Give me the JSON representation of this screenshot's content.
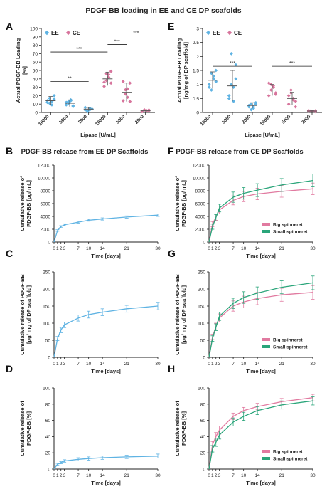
{
  "figure_title": "PDGF-BB loading in EE and CE DP scafolds",
  "colors": {
    "ee": "#5fb3e3",
    "ce": "#d7749c",
    "big": "#e17aa0",
    "small": "#2aa57a",
    "axis": "#222222"
  },
  "panel_letters": {
    "A": "A",
    "B": "B",
    "C": "C",
    "D": "D",
    "E": "E",
    "F": "F",
    "G": "G",
    "H": "H"
  },
  "chart_data": [
    {
      "id": "A",
      "type": "scatter",
      "title": "",
      "xlabel": "Lipase [U/mL]",
      "ylabel": "Actual PDGF-BB Loading [%]",
      "ylim": [
        0,
        100
      ],
      "yticks": [
        0,
        10,
        20,
        30,
        40,
        50,
        60,
        70,
        80,
        90,
        100
      ],
      "categories": [
        "10000",
        "5000",
        "2000",
        "10000",
        "5000",
        "2000"
      ],
      "legend": [
        {
          "name": "EE",
          "marker": "diamond"
        },
        {
          "name": "CE",
          "marker": "diamond"
        }
      ],
      "series": [
        {
          "name": "EE",
          "categories_index": [
            0,
            1,
            2
          ],
          "means": [
            14,
            11,
            4
          ],
          "sd": [
            5,
            4,
            2
          ],
          "points": [
            [
              12,
              17,
              9,
              20,
              14,
              11,
              13,
              16
            ],
            [
              9,
              13,
              15,
              8,
              12,
              11,
              14,
              7
            ],
            [
              3,
              2,
              5,
              4,
              6,
              1,
              3,
              4
            ]
          ]
        },
        {
          "name": "CE",
          "categories_index": [
            3,
            4,
            5
          ],
          "means": [
            40,
            24,
            2
          ],
          "sd": [
            8,
            11,
            1
          ],
          "points": [
            [
              31,
              38,
              42,
              49,
              36,
              46,
              45,
              35
            ],
            [
              14,
              27,
              18,
              35,
              37,
              22,
              28,
              13
            ],
            [
              1,
              3,
              2,
              2,
              1,
              3,
              2,
              3
            ]
          ]
        }
      ],
      "significance": [
        {
          "label": "**",
          "from": 0,
          "to": 2,
          "y": 37
        },
        {
          "label": "***",
          "from": 0,
          "to": 3,
          "y": 72
        },
        {
          "label": "***",
          "from": 3,
          "to": 4,
          "y": 81
        },
        {
          "label": "***",
          "from": 4,
          "to": 5,
          "y": 91
        }
      ]
    },
    {
      "id": "E",
      "type": "scatter",
      "title": "",
      "xlabel": "Lipase [U/mL]",
      "ylabel": "Actual PDGF-BB Loading [ng/mg of DP scaffold]",
      "ylim": [
        0,
        3
      ],
      "yticks": [
        0,
        0.5,
        1,
        1.5,
        2,
        2.5,
        3
      ],
      "ytick_labels": [
        "0",
        "0.5",
        "1",
        "1.5",
        "2",
        "2.5",
        "3"
      ],
      "categories": [
        "10000",
        "5000",
        "2000",
        "10000",
        "5000",
        "2000"
      ],
      "legend": [
        {
          "name": "EE",
          "marker": "diamond"
        },
        {
          "name": "CE",
          "marker": "diamond"
        }
      ],
      "series": [
        {
          "name": "EE",
          "categories_index": [
            0,
            1,
            2
          ],
          "means": [
            1.15,
            0.95,
            0.25
          ],
          "sd": [
            0.3,
            0.55,
            0.1
          ],
          "points": [
            [
              0.9,
              1.4,
              1.2,
              1.5,
              1.0,
              0.8,
              1.3,
              1.1
            ],
            [
              0.6,
              2.1,
              0.9,
              1.7,
              0.5,
              1.0,
              0.4,
              1.2
            ],
            [
              0.2,
              0.3,
              0.15,
              0.35,
              0.25,
              0.1,
              0.2,
              0.3
            ]
          ]
        },
        {
          "name": "CE",
          "categories_index": [
            3,
            4,
            5
          ],
          "means": [
            0.8,
            0.5,
            0.05
          ],
          "sd": [
            0.2,
            0.22,
            0.03
          ],
          "points": [
            [
              0.6,
              1.0,
              0.9,
              0.7,
              1.05,
              0.8,
              0.95,
              0.65
            ],
            [
              0.3,
              0.7,
              0.45,
              0.2,
              0.6,
              0.8,
              0.5,
              0.4
            ],
            [
              0.04,
              0.06,
              0.05,
              0.03,
              0.07,
              0.05,
              0.04,
              0.06
            ]
          ]
        }
      ],
      "significance": [
        {
          "label": "***",
          "from": 0,
          "to": 2,
          "y": 1.65
        },
        {
          "label": "***",
          "from": 3,
          "to": 5,
          "y": 1.65
        }
      ]
    },
    {
      "id": "B",
      "type": "line",
      "title": "PDGF-BB release from EE DP Scaffolds",
      "xlabel": "Time [days]",
      "ylabel": "Cumulative release of PDGF-BB [pg/ mL]",
      "xlim": [
        0,
        30
      ],
      "xticks": [
        0,
        1,
        2,
        3,
        7,
        10,
        14,
        21,
        30
      ],
      "ylim": [
        0,
        12000
      ],
      "yticks": [
        0,
        2000,
        4000,
        6000,
        8000,
        10000,
        12000
      ],
      "series": [
        {
          "name": "EE",
          "x": [
            0,
            1,
            2,
            3,
            7,
            10,
            14,
            21,
            30
          ],
          "y": [
            0,
            1800,
            2400,
            2700,
            3100,
            3400,
            3600,
            3900,
            4200
          ],
          "err": [
            0,
            120,
            150,
            150,
            150,
            150,
            170,
            180,
            200
          ]
        }
      ]
    },
    {
      "id": "F",
      "type": "line",
      "title": "PDGF-BB release from CE DP Scaffolds",
      "xlabel": "Time [days]",
      "ylabel": "Cumulative release of PDGF-BB [pg/ mL]",
      "xlim": [
        0,
        30
      ],
      "xticks": [
        0,
        1,
        2,
        3,
        7,
        10,
        14,
        21,
        30
      ],
      "ylim": [
        0,
        12000
      ],
      "yticks": [
        0,
        2000,
        4000,
        6000,
        8000,
        10000,
        12000
      ],
      "legend": [
        {
          "name": "Big spinneret"
        },
        {
          "name": "Small spinneret"
        }
      ],
      "series": [
        {
          "name": "Big spinneret",
          "x": [
            0,
            1,
            2,
            3,
            7,
            10,
            14,
            21,
            30
          ],
          "y": [
            0,
            2800,
            3900,
            5000,
            6500,
            7100,
            7500,
            7900,
            8300
          ],
          "err": [
            0,
            400,
            500,
            600,
            700,
            800,
            900,
            900,
            900
          ]
        },
        {
          "name": "Small spinneret",
          "x": [
            0,
            1,
            2,
            3,
            7,
            10,
            14,
            21,
            30
          ],
          "y": [
            0,
            2400,
            3800,
            5300,
            7000,
            7600,
            8100,
            8900,
            9600
          ],
          "err": [
            0,
            400,
            500,
            600,
            800,
            900,
            1000,
            1000,
            1000
          ]
        }
      ]
    },
    {
      "id": "C",
      "type": "line",
      "title": "",
      "xlabel": "Time [days]",
      "ylabel": "Cumulative release of PDGF-BB [pg/ mg of DP scaffold]",
      "xlim": [
        0,
        30
      ],
      "xticks": [
        0,
        1,
        2,
        3,
        7,
        10,
        14,
        21,
        30
      ],
      "ylim": [
        0,
        250
      ],
      "yticks": [
        0,
        50,
        100,
        150,
        200,
        250
      ],
      "series": [
        {
          "name": "EE",
          "x": [
            0,
            1,
            2,
            3,
            7,
            10,
            14,
            21,
            30
          ],
          "y": [
            0,
            55,
            80,
            95,
            115,
            125,
            132,
            142,
            150
          ],
          "err": [
            0,
            6,
            8,
            8,
            9,
            10,
            10,
            10,
            11
          ]
        }
      ]
    },
    {
      "id": "G",
      "type": "line",
      "title": "",
      "xlabel": "Time [days]",
      "ylabel": "Cumulative release of PDGF-BB [pg/ mg of DP scaffold]",
      "xlim": [
        0,
        30
      ],
      "xticks": [
        0,
        1,
        2,
        3,
        7,
        10,
        14,
        21,
        30
      ],
      "ylim": [
        0,
        250
      ],
      "yticks": [
        0,
        50,
        100,
        150,
        200,
        250
      ],
      "legend": [
        {
          "name": "Big spinneret"
        },
        {
          "name": "Small spinneret"
        }
      ],
      "series": [
        {
          "name": "Big spinneret",
          "x": [
            0,
            1,
            2,
            3,
            7,
            10,
            14,
            21,
            30
          ],
          "y": [
            0,
            60,
            90,
            115,
            150,
            162,
            172,
            183,
            190
          ],
          "err": [
            0,
            8,
            10,
            12,
            15,
            17,
            18,
            19,
            20
          ]
        },
        {
          "name": "Small spinneret",
          "x": [
            0,
            1,
            2,
            3,
            7,
            10,
            14,
            21,
            30
          ],
          "y": [
            0,
            55,
            88,
            120,
            158,
            175,
            188,
            205,
            218
          ],
          "err": [
            0,
            8,
            10,
            12,
            15,
            17,
            18,
            19,
            20
          ]
        }
      ]
    },
    {
      "id": "D",
      "type": "line",
      "title": "",
      "xlabel": "Time [days]",
      "ylabel": "Cumulative release of PDGF-BB [%]",
      "xlim": [
        0,
        30
      ],
      "xticks": [
        0,
        1,
        2,
        3,
        7,
        10,
        14,
        21,
        30
      ],
      "ylim": [
        0,
        100
      ],
      "yticks": [
        0,
        20,
        40,
        60,
        80,
        100
      ],
      "series": [
        {
          "name": "EE",
          "x": [
            0,
            1,
            2,
            3,
            7,
            10,
            14,
            21,
            30
          ],
          "y": [
            0,
            6,
            8,
            10,
            12,
            13,
            14,
            15,
            16
          ],
          "err": [
            0,
            1,
            1.5,
            1.5,
            2,
            2,
            2,
            2,
            2.5
          ]
        }
      ]
    },
    {
      "id": "H",
      "type": "line",
      "title": "",
      "xlabel": "Time [days]",
      "ylabel": "Cumulative release of PDGF-BB [%]",
      "xlim": [
        0,
        30
      ],
      "xticks": [
        0,
        1,
        2,
        3,
        7,
        10,
        14,
        21,
        30
      ],
      "ylim": [
        0,
        100
      ],
      "yticks": [
        0,
        20,
        40,
        60,
        80,
        100
      ],
      "legend": [
        {
          "name": "Big spinneret"
        },
        {
          "name": "Small spinneret"
        }
      ],
      "series": [
        {
          "name": "Big spinneret",
          "x": [
            0,
            1,
            2,
            3,
            7,
            10,
            14,
            21,
            30
          ],
          "y": [
            0,
            30,
            40,
            48,
            65,
            72,
            77,
            83,
            88
          ],
          "err": [
            0,
            4,
            5,
            5,
            4,
            4,
            4,
            4,
            4
          ]
        },
        {
          "name": "Small spinneret",
          "x": [
            0,
            1,
            2,
            3,
            7,
            10,
            14,
            21,
            30
          ],
          "y": [
            0,
            25,
            33,
            42,
            58,
            65,
            72,
            79,
            84
          ],
          "err": [
            0,
            4,
            5,
            5,
            5,
            5,
            5,
            5,
            5
          ]
        }
      ]
    }
  ]
}
